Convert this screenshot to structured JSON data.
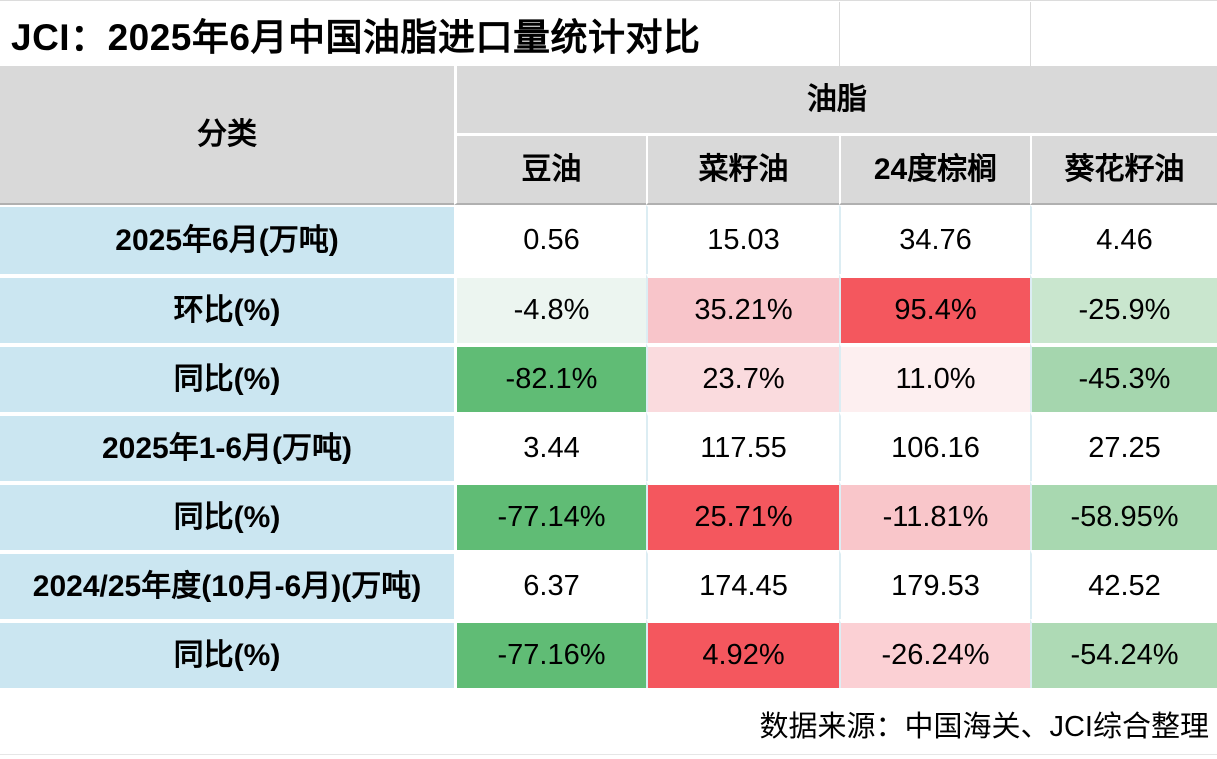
{
  "title": "JCI：2025年6月中国油脂进口量统计对比",
  "chart_data": {
    "type": "table",
    "title": "JCI：2025年6月中国油脂进口量统计对比",
    "category_header": "分类",
    "group_header": "油脂",
    "columns": [
      "豆油",
      "菜籽油",
      "24度棕榈",
      "葵花籽油"
    ],
    "rows": [
      {
        "label": "2025年6月(万吨)",
        "values": [
          "0.56",
          "15.03",
          "34.76",
          "4.46"
        ],
        "bg": [
          "#ffffff",
          "#ffffff",
          "#ffffff",
          "#ffffff"
        ]
      },
      {
        "label": "环比(%)",
        "values": [
          "-4.8%",
          "35.21%",
          "95.4%",
          "-25.9%"
        ],
        "bg": [
          "#ecf5f0",
          "#f8c5ca",
          "#f4575e",
          "#c9e6ce"
        ]
      },
      {
        "label": "同比(%)",
        "values": [
          "-82.1%",
          "23.7%",
          "11.0%",
          "-45.3%"
        ],
        "bg": [
          "#60bc75",
          "#fadbde",
          "#fdeff0",
          "#a5d6ae"
        ]
      },
      {
        "label": "2025年1-6月(万吨)",
        "values": [
          "3.44",
          "117.55",
          "106.16",
          "27.25"
        ],
        "bg": [
          "#ffffff",
          "#ffffff",
          "#ffffff",
          "#ffffff"
        ]
      },
      {
        "label": "同比(%)",
        "values": [
          "-77.14%",
          "25.71%",
          "-11.81%",
          "-58.95%"
        ],
        "bg": [
          "#60bc75",
          "#f4575e",
          "#f9c6ca",
          "#a8d8b0"
        ]
      },
      {
        "label": "2024/25年度(10月-6月)(万吨)",
        "values": [
          "6.37",
          "174.45",
          "179.53",
          "42.52"
        ],
        "bg": [
          "#ffffff",
          "#ffffff",
          "#ffffff",
          "#ffffff"
        ]
      },
      {
        "label": "同比(%)",
        "values": [
          "-77.16%",
          "4.92%",
          "-26.24%",
          "-54.24%"
        ],
        "bg": [
          "#60bc75",
          "#f4575e",
          "#fbd0d4",
          "#aedab5"
        ]
      }
    ]
  },
  "footer": {
    "source_label": "数据来源：中国海关、JCI综合整理"
  },
  "colors": {
    "header_bg": "#d9d9d9",
    "row_label_bg": "#cbe6f1",
    "strong_increase_red": "#f4575e",
    "strong_decrease_green": "#60bc75",
    "header_divider": "#b0b0b0"
  }
}
